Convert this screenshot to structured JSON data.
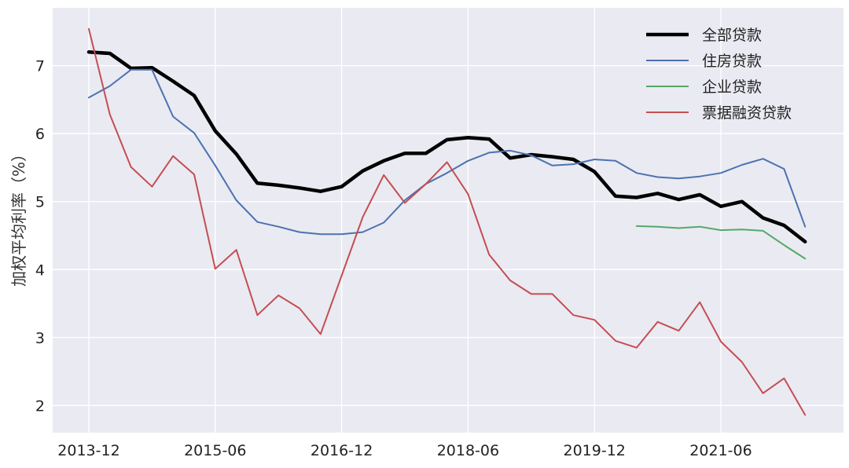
{
  "chart_data": {
    "type": "line",
    "ylabel": "加权平均利率（%）",
    "ylim": [
      1.6,
      7.85
    ],
    "yticks": [
      2,
      3,
      4,
      5,
      6,
      7
    ],
    "xticks": [
      "2013-12",
      "2015-06",
      "2016-12",
      "2018-06",
      "2019-12",
      "2021-06"
    ],
    "grid": true,
    "legend_position": "top-right",
    "background": "#EAEAF2",
    "x": [
      "2013-12",
      "2014-03",
      "2014-06",
      "2014-09",
      "2014-12",
      "2015-03",
      "2015-06",
      "2015-09",
      "2015-12",
      "2016-03",
      "2016-06",
      "2016-09",
      "2016-12",
      "2017-03",
      "2017-06",
      "2017-09",
      "2017-12",
      "2018-03",
      "2018-06",
      "2018-09",
      "2018-12",
      "2019-03",
      "2019-06",
      "2019-09",
      "2019-12",
      "2020-03",
      "2020-06",
      "2020-09",
      "2020-12",
      "2021-03",
      "2021-06",
      "2021-09",
      "2021-12",
      "2022-03",
      "2022-06"
    ],
    "series": [
      {
        "name": "全部贷款",
        "color": "#000000",
        "width": 4.5,
        "values": [
          7.2,
          7.18,
          6.96,
          6.97,
          6.77,
          6.56,
          6.04,
          5.7,
          5.27,
          5.24,
          5.2,
          5.15,
          5.22,
          5.45,
          5.6,
          5.71,
          5.71,
          5.91,
          5.94,
          5.92,
          5.64,
          5.69,
          5.66,
          5.62,
          5.44,
          5.08,
          5.06,
          5.12,
          5.03,
          5.1,
          4.93,
          5.0,
          4.76,
          4.65,
          4.41
        ]
      },
      {
        "name": "住房贷款",
        "color": "#4C72B0",
        "width": 2,
        "values": [
          6.53,
          6.7,
          6.94,
          6.94,
          6.25,
          6.01,
          5.53,
          5.02,
          4.7,
          4.63,
          4.55,
          4.52,
          4.52,
          4.55,
          4.69,
          5.02,
          5.26,
          5.42,
          5.6,
          5.72,
          5.75,
          5.68,
          5.53,
          5.55,
          5.62,
          5.6,
          5.42,
          5.36,
          5.34,
          5.37,
          5.42,
          5.54,
          5.63,
          5.48,
          4.63
        ]
      },
      {
        "name": "企业贷款",
        "color": "#55A868",
        "width": 2,
        "values": [
          null,
          null,
          null,
          null,
          null,
          null,
          null,
          null,
          null,
          null,
          null,
          null,
          null,
          null,
          null,
          null,
          null,
          null,
          null,
          null,
          null,
          null,
          null,
          null,
          null,
          null,
          4.64,
          4.63,
          4.61,
          4.63,
          4.58,
          4.59,
          4.57,
          4.36,
          4.16
        ]
      },
      {
        "name": "票据融资贷款",
        "color": "#C44E52",
        "width": 2,
        "values": [
          7.54,
          6.28,
          5.51,
          5.22,
          5.67,
          5.4,
          4.01,
          4.29,
          3.33,
          3.62,
          3.43,
          3.05,
          3.91,
          4.77,
          5.39,
          4.98,
          5.26,
          5.58,
          5.11,
          4.22,
          3.84,
          3.64,
          3.64,
          3.33,
          3.26,
          2.95,
          2.85,
          3.23,
          3.1,
          3.52,
          2.94,
          2.64,
          2.18,
          2.4,
          1.86
        ]
      }
    ]
  }
}
